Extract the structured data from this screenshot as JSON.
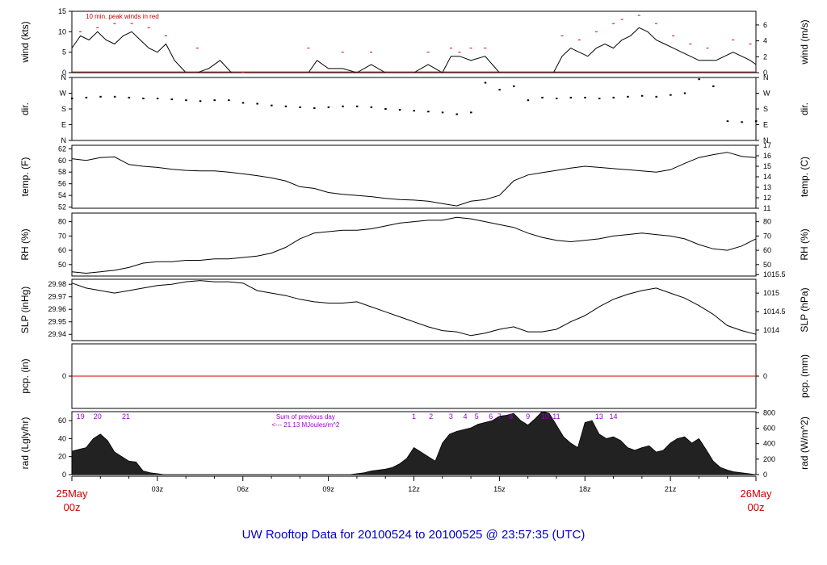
{
  "title": "UW Rooftop Data for 20100524  to  20100525 @ 23:57:35  (UTC)",
  "colors": {
    "title": "#0000cc",
    "date": "#cc0000",
    "purple": "#9900cc",
    "red": "#cc0000",
    "trace": "#000000",
    "bg": "#ffffff"
  },
  "x_axis": {
    "ticks": [
      "03z",
      "06z",
      "09z",
      "12z",
      "15z",
      "18z",
      "21z"
    ],
    "start": {
      "line1": "25May",
      "line2": "00z"
    },
    "end": {
      "line1": "26May",
      "line2": "00z"
    }
  },
  "chart_data": [
    {
      "type": "line",
      "id": "wind",
      "ylabel_left": "wind (kts)",
      "ylabel_right": "wind (m/s)",
      "left_ticks": [
        "0",
        "5",
        "10",
        "15"
      ],
      "right_ticks": [
        "0",
        "2",
        "4",
        "6"
      ],
      "ylim": [
        0,
        15
      ],
      "annotation": "10 min. peak winds in red",
      "series": [
        {
          "name": "wind",
          "x_hours": [
            0,
            0.3,
            0.6,
            0.9,
            1.2,
            1.5,
            1.8,
            2.1,
            2.4,
            2.7,
            3.0,
            3.3,
            3.6,
            4.0,
            4.4,
            4.8,
            5.2,
            5.6,
            6.0,
            6.5,
            7.0,
            7.5,
            8.0,
            8.3,
            8.6,
            9.0,
            9.5,
            10.0,
            10.5,
            11.0,
            11.5,
            12.0,
            12.5,
            13.0,
            13.3,
            13.6,
            14.0,
            14.5,
            15.0,
            15.5,
            16.0,
            16.5,
            16.9,
            17.2,
            17.5,
            17.8,
            18.1,
            18.4,
            18.7,
            19.0,
            19.3,
            19.6,
            19.9,
            20.2,
            20.5,
            20.8,
            21.1,
            21.4,
            21.7,
            22.0,
            22.3,
            22.6,
            22.9,
            23.2,
            23.5,
            23.8,
            24.0
          ],
          "y": [
            6,
            9,
            8,
            10,
            8,
            7,
            9,
            10,
            8,
            6,
            5,
            7,
            3,
            0,
            0,
            1,
            3,
            0,
            0,
            0,
            0,
            0,
            0,
            0,
            3,
            1,
            1,
            0,
            2,
            0,
            0,
            0,
            2,
            0,
            4,
            4,
            3,
            4,
            0,
            0,
            0,
            0,
            0,
            4,
            6,
            5,
            4,
            6,
            7,
            6,
            8,
            9,
            11,
            10,
            8,
            7,
            6,
            5,
            4,
            3,
            3,
            3,
            4,
            5,
            4,
            3,
            2
          ]
        },
        {
          "name": "peak",
          "x_hours": [
            0.3,
            0.9,
            1.5,
            2.1,
            2.7,
            3.3,
            4.4,
            6.0,
            8.3,
            9.5,
            10.5,
            12.5,
            13.3,
            13.6,
            14.0,
            14.5,
            17.2,
            17.8,
            18.4,
            19.0,
            19.3,
            19.9,
            20.5,
            21.1,
            21.7,
            22.3,
            23.2,
            23.8
          ],
          "y": [
            10,
            11,
            12,
            12,
            11,
            9,
            6,
            0,
            6,
            5,
            5,
            5,
            6,
            5,
            6,
            6,
            9,
            8,
            10,
            12,
            13,
            14,
            12,
            9,
            7,
            6,
            8,
            7
          ]
        }
      ]
    },
    {
      "type": "scatter",
      "id": "dir",
      "ylabel_left": "dir.",
      "ylabel_right": "dir.",
      "left_ticks": [
        "N",
        "E",
        "S",
        "W",
        "N"
      ],
      "right_ticks": [
        "N",
        "E",
        "S",
        "W",
        "N"
      ],
      "ylim": [
        0,
        360
      ],
      "series": [
        {
          "name": "direction",
          "x_hours": [
            0,
            0.5,
            1.0,
            1.5,
            2.0,
            2.5,
            3.0,
            3.5,
            4.0,
            4.5,
            5.0,
            5.5,
            6.0,
            6.5,
            7.0,
            7.5,
            8.0,
            8.5,
            9.0,
            9.5,
            10.0,
            10.5,
            11.0,
            11.5,
            12.0,
            12.5,
            13.0,
            13.5,
            14.0,
            14.5,
            15.0,
            15.5,
            16.0,
            16.5,
            17.0,
            17.5,
            18.0,
            18.5,
            19.0,
            19.5,
            20.0,
            20.5,
            21.0,
            21.5,
            22.0,
            22.5,
            23.0,
            23.5,
            24.0
          ],
          "y": [
            240,
            245,
            250,
            250,
            245,
            240,
            240,
            235,
            230,
            225,
            230,
            230,
            215,
            210,
            200,
            195,
            190,
            185,
            190,
            195,
            195,
            190,
            180,
            175,
            170,
            165,
            160,
            150,
            160,
            330,
            290,
            310,
            230,
            245,
            240,
            245,
            245,
            240,
            245,
            250,
            255,
            250,
            260,
            270,
            350,
            310,
            110,
            105,
            110
          ]
        }
      ]
    },
    {
      "type": "line",
      "id": "temp",
      "ylabel_left": "temp. (F)",
      "ylabel_right": "temp. (C)",
      "left_ticks": [
        "52",
        "54",
        "56",
        "58",
        "60",
        "62"
      ],
      "right_ticks": [
        "11",
        "12",
        "13",
        "14",
        "15",
        "16",
        "17"
      ],
      "ylim": [
        51.8,
        62.6
      ],
      "series": [
        {
          "name": "temperature",
          "x_hours": [
            0,
            0.5,
            1.0,
            1.5,
            2.0,
            2.5,
            3.0,
            3.5,
            4.0,
            4.5,
            5.0,
            5.5,
            6.0,
            6.5,
            7.0,
            7.5,
            8.0,
            8.5,
            9.0,
            9.5,
            10.0,
            10.5,
            11.0,
            11.5,
            12.0,
            12.5,
            13.0,
            13.5,
            14.0,
            14.5,
            15.0,
            15.5,
            16.0,
            16.5,
            17.0,
            17.5,
            18.0,
            18.5,
            19.0,
            19.5,
            20.0,
            20.5,
            21.0,
            21.5,
            22.0,
            22.5,
            23.0,
            23.5,
            24.0
          ],
          "y": [
            60.3,
            60.0,
            60.5,
            60.6,
            59.3,
            59.0,
            58.8,
            58.5,
            58.3,
            58.2,
            58.2,
            58.0,
            57.7,
            57.4,
            57.0,
            56.5,
            55.5,
            55.2,
            54.5,
            54.2,
            54.0,
            53.8,
            53.5,
            53.3,
            53.2,
            53.0,
            52.6,
            52.2,
            53.0,
            53.3,
            54.0,
            56.5,
            57.5,
            57.9,
            58.3,
            58.7,
            59.0,
            58.8,
            58.6,
            58.4,
            58.2,
            58.0,
            58.4,
            59.5,
            60.5,
            61.0,
            61.4,
            60.7,
            60.5
          ]
        }
      ]
    },
    {
      "type": "line",
      "id": "rh",
      "ylabel_left": "RH (%)",
      "ylabel_right": "RH (%)",
      "left_ticks": [
        "50",
        "60",
        "70",
        "80"
      ],
      "right_ticks": [
        "50",
        "60",
        "70",
        "80"
      ],
      "ylim": [
        42,
        86
      ],
      "series": [
        {
          "name": "relative humidity",
          "x_hours": [
            0,
            0.5,
            1.0,
            1.5,
            2.0,
            2.5,
            3.0,
            3.5,
            4.0,
            4.5,
            5.0,
            5.5,
            6.0,
            6.5,
            7.0,
            7.5,
            8.0,
            8.5,
            9.0,
            9.5,
            10.0,
            10.5,
            11.0,
            11.5,
            12.0,
            12.5,
            13.0,
            13.5,
            14.0,
            14.5,
            15.0,
            15.5,
            16.0,
            16.5,
            17.0,
            17.5,
            18.0,
            18.5,
            19.0,
            19.5,
            20.0,
            20.5,
            21.0,
            21.5,
            22.0,
            22.5,
            23.0,
            23.5,
            24.0
          ],
          "y": [
            45,
            44,
            45,
            46,
            48,
            51,
            52,
            52,
            53,
            53,
            54,
            54,
            55,
            56,
            58,
            62,
            68,
            72,
            73,
            74,
            74,
            75,
            77,
            79,
            80,
            81,
            81,
            83,
            82,
            80,
            78,
            76,
            72,
            69,
            67,
            66,
            67,
            68,
            70,
            71,
            72,
            71,
            70,
            68,
            64,
            61,
            60,
            63,
            68
          ]
        }
      ]
    },
    {
      "type": "line",
      "id": "slp",
      "ylabel_left": "SLP (inHg)",
      "ylabel_right": "SLP (hPa)",
      "left_ticks": [
        "29.94",
        "29.95",
        "29.96",
        "29.97",
        "29.98"
      ],
      "right_ticks": [
        "1014",
        "1014.5",
        "1015",
        "1015.5"
      ],
      "ylim": [
        29.935,
        29.984
      ],
      "series": [
        {
          "name": "sea level pressure",
          "x_hours": [
            0,
            0.5,
            1.0,
            1.5,
            2.0,
            2.5,
            3.0,
            3.5,
            4.0,
            4.5,
            5.0,
            5.5,
            6.0,
            6.5,
            7.0,
            7.5,
            8.0,
            8.5,
            9.0,
            9.5,
            10.0,
            10.5,
            11.0,
            11.5,
            12.0,
            12.5,
            13.0,
            13.5,
            14.0,
            14.5,
            15.0,
            15.5,
            16.0,
            16.5,
            17.0,
            17.5,
            18.0,
            18.5,
            19.0,
            19.5,
            20.0,
            20.5,
            21.0,
            21.5,
            22.0,
            22.5,
            23.0,
            23.5,
            24.0
          ],
          "y": [
            29.981,
            29.977,
            29.975,
            29.973,
            29.975,
            29.977,
            29.979,
            29.98,
            29.982,
            29.983,
            29.982,
            29.982,
            29.981,
            29.975,
            29.973,
            29.971,
            29.968,
            29.966,
            29.965,
            29.965,
            29.966,
            29.962,
            29.958,
            29.954,
            29.95,
            29.946,
            29.943,
            29.942,
            29.939,
            29.941,
            29.944,
            29.946,
            29.942,
            29.942,
            29.944,
            29.95,
            29.955,
            29.962,
            29.968,
            29.972,
            29.975,
            29.977,
            29.973,
            29.969,
            29.963,
            29.956,
            29.947,
            29.943,
            29.94
          ]
        }
      ]
    },
    {
      "type": "line",
      "id": "pcp",
      "ylabel_left": "pcp. (in)",
      "ylabel_right": "pcp. (mm)",
      "left_ticks": [
        "0"
      ],
      "right_ticks": [
        "0"
      ],
      "ylim": [
        -1,
        1
      ],
      "series": [
        {
          "name": "precipitation",
          "x_hours": [
            0,
            24
          ],
          "y": [
            0,
            0
          ]
        }
      ]
    },
    {
      "type": "area",
      "id": "rad",
      "ylabel_left": "rad (Lgly/hr)",
      "ylabel_right": "rad (W/m^2)",
      "left_ticks": [
        "0",
        "20",
        "40",
        "60"
      ],
      "right_ticks": [
        "0",
        "200",
        "400",
        "600",
        "800"
      ],
      "ylim": [
        0,
        70
      ],
      "hour_labels": [
        "19",
        "20",
        "21",
        "1",
        "2",
        "3",
        "4",
        "5",
        "6",
        "7",
        "8",
        "9",
        "10",
        "11",
        "13",
        "14"
      ],
      "hour_label_x": [
        0.3,
        0.9,
        1.9,
        12.0,
        12.6,
        13.3,
        13.8,
        14.2,
        14.7,
        15.0,
        15.4,
        16.0,
        16.6,
        17.0,
        18.5,
        19.0
      ],
      "sum_text": "Sum of previous day",
      "sum_value": "<--- 21.13 MJoules/m^2",
      "series": [
        {
          "name": "radiation",
          "x_hours": [
            0,
            0.25,
            0.5,
            0.75,
            1.0,
            1.25,
            1.5,
            1.75,
            2.0,
            2.25,
            2.5,
            2.75,
            3.0,
            3.25,
            3.5,
            9.75,
            10.0,
            10.25,
            10.5,
            10.75,
            11.0,
            11.25,
            11.5,
            11.75,
            12.0,
            12.25,
            12.5,
            12.75,
            13.0,
            13.25,
            13.5,
            13.75,
            14.0,
            14.25,
            14.5,
            14.75,
            15.0,
            15.25,
            15.5,
            15.75,
            16.0,
            16.25,
            16.5,
            16.75,
            17.0,
            17.25,
            17.5,
            17.75,
            18.0,
            18.25,
            18.5,
            18.75,
            19.0,
            19.25,
            19.5,
            19.75,
            20.0,
            20.25,
            20.5,
            20.75,
            21.0,
            21.25,
            21.5,
            21.75,
            22.0,
            22.25,
            22.5,
            22.75,
            23.0,
            23.25,
            23.5,
            23.75,
            24.0
          ],
          "y": [
            26,
            28,
            30,
            40,
            45,
            38,
            25,
            20,
            15,
            14,
            4,
            2,
            1,
            0,
            0,
            0,
            1,
            2,
            4,
            5,
            6,
            8,
            12,
            18,
            30,
            25,
            20,
            15,
            35,
            45,
            48,
            50,
            52,
            56,
            58,
            60,
            65,
            66,
            68,
            60,
            55,
            62,
            70,
            68,
            55,
            42,
            35,
            30,
            58,
            60,
            45,
            40,
            42,
            38,
            30,
            27,
            30,
            32,
            25,
            27,
            35,
            40,
            42,
            35,
            40,
            28,
            15,
            8,
            5,
            3,
            2,
            1,
            0
          ]
        }
      ]
    }
  ]
}
